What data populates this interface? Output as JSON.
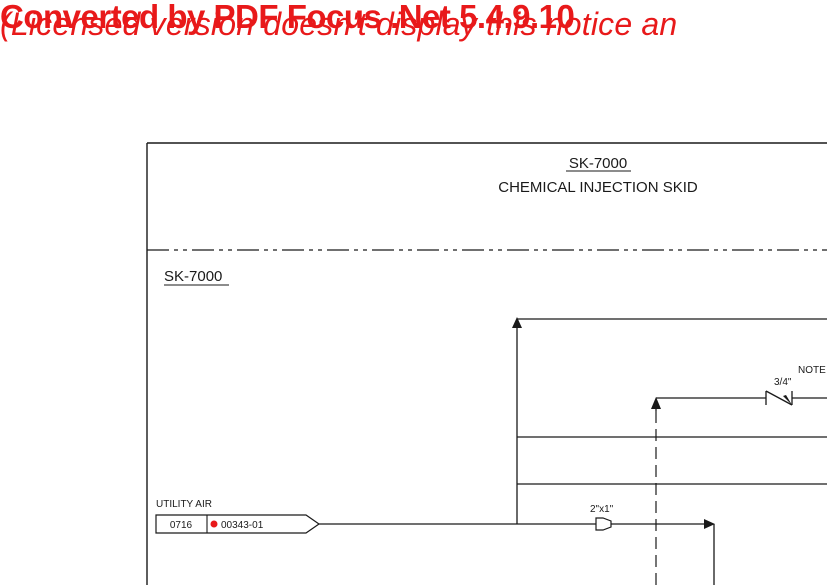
{
  "watermark": {
    "line1": "Converted by PDF Focus .Net 5.4.9.10",
    "line2": "(Licensed version doesn't display this notice an"
  },
  "drawing": {
    "title_tag": "SK-7000",
    "title_desc": "CHEMICAL INJECTION SKID",
    "section_tag": "SK-7000",
    "note_label": "NOTE",
    "valve_size": "3/4\"",
    "reducer_size": "2\"x1\"",
    "utility": {
      "label": "UTILITY AIR",
      "sheet_no": "0716",
      "drawing_no": "00343-01"
    }
  },
  "colors": {
    "watermark": "#e8191a",
    "line": "#1a1a1a",
    "marker": "#e8191a"
  }
}
